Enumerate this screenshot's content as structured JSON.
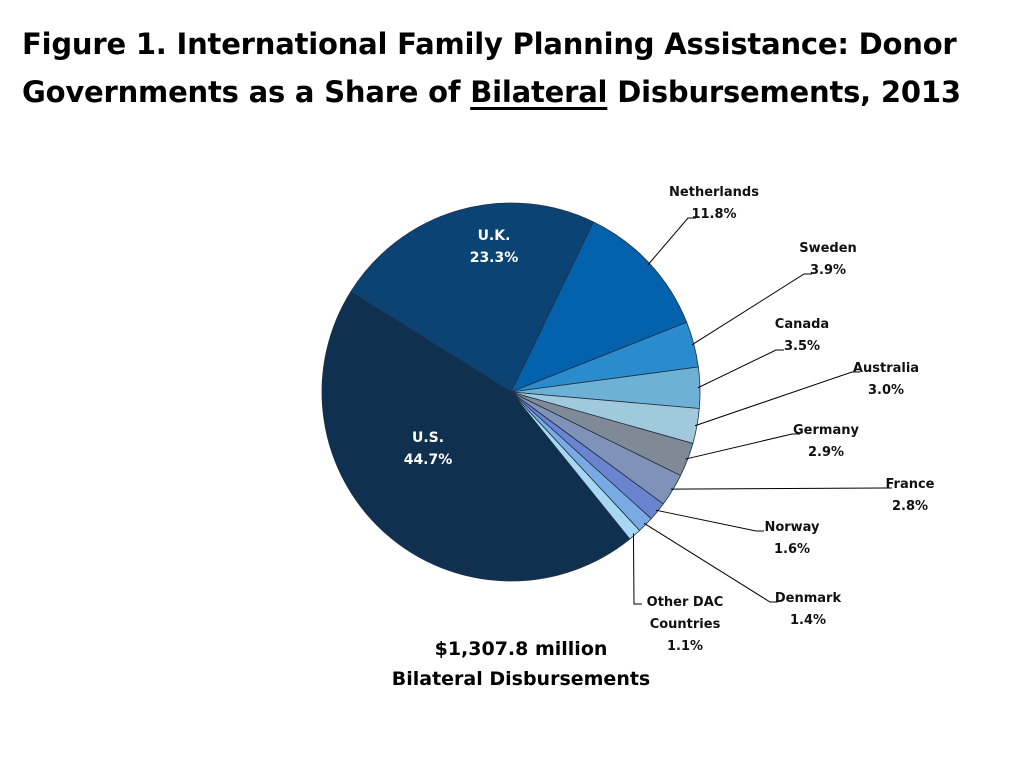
{
  "title": {
    "line1": "Figure 1. International Family Planning Assistance: Donor",
    "line2_pre": "Governments as a Share of ",
    "line2_underlined": "Bilateral",
    "line2_post": " Disbursements, 2013"
  },
  "total": {
    "amount": "$1,307.8 million",
    "caption": "Bilateral Disbursements"
  },
  "chart_data": {
    "type": "pie",
    "unit": "%",
    "slices": [
      {
        "name": "U.K.",
        "value": 23.3,
        "label": "23.3%",
        "color": "#0b4474"
      },
      {
        "name": "Netherlands",
        "value": 11.8,
        "label": "11.8%",
        "color": "#0462ad"
      },
      {
        "name": "Sweden",
        "value": 3.9,
        "label": "3.9%",
        "color": "#2a8ccc"
      },
      {
        "name": "Canada",
        "value": 3.5,
        "label": "3.5%",
        "color": "#6db2d6"
      },
      {
        "name": "Australia",
        "value": 3.0,
        "label": "3.0%",
        "color": "#a0c9dc"
      },
      {
        "name": "Germany",
        "value": 2.9,
        "label": "2.9%",
        "color": "#808a96"
      },
      {
        "name": "France",
        "value": 2.8,
        "label": "2.8%",
        "color": "#7f93b9"
      },
      {
        "name": "Norway",
        "value": 1.6,
        "label": "1.6%",
        "color": "#6b84cf"
      },
      {
        "name": "Denmark",
        "value": 1.4,
        "label": "1.4%",
        "color": "#79aae4"
      },
      {
        "name": "Other DAC Countries",
        "value": 1.1,
        "label": "1.1%",
        "color": "#a8d7f4"
      },
      {
        "name": "U.S.",
        "value": 44.7,
        "label": "44.7%",
        "color": "#10304f"
      }
    ]
  }
}
